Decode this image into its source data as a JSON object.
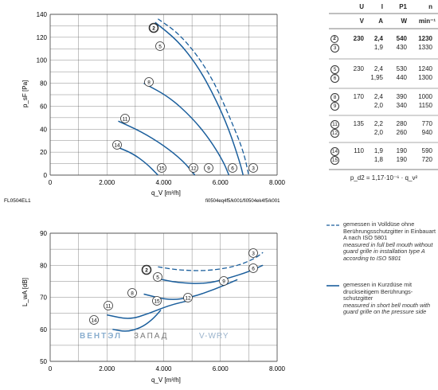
{
  "chart_data": [
    {
      "type": "line",
      "ylabel": "p_sF [Pa]",
      "xlabel": "q_V [m³/h]",
      "xlim": [
        0,
        8000
      ],
      "ylim": [
        0,
        140
      ],
      "x_ticks": [
        "0",
        "2.000",
        "4.000",
        "6.000",
        "8.000"
      ],
      "y_ticks": [
        "0",
        "20",
        "40",
        "60",
        "80",
        "100",
        "120",
        "140"
      ],
      "grid": true,
      "series": [
        {
          "name": "2",
          "style": "dashed",
          "points": [
            [
              3800,
              136
            ],
            [
              4500,
              124
            ],
            [
              5200,
              104
            ],
            [
              5800,
              80
            ],
            [
              6300,
              52
            ],
            [
              6800,
              22
            ],
            [
              7000,
              0
            ]
          ]
        },
        {
          "name": "5",
          "style": "solid",
          "points": [
            [
              3700,
              133
            ],
            [
              4500,
              117
            ],
            [
              5200,
              95
            ],
            [
              5800,
              68
            ],
            [
              6300,
              40
            ],
            [
              6700,
              10
            ],
            [
              6800,
              0
            ]
          ]
        },
        {
          "name": "8",
          "style": "solid",
          "points": [
            [
              3300,
              80
            ],
            [
              4200,
              68
            ],
            [
              5000,
              50
            ],
            [
              5600,
              32
            ],
            [
              6100,
              12
            ],
            [
              6300,
              0
            ]
          ]
        },
        {
          "name": "11",
          "style": "solid",
          "points": [
            [
              2400,
              47
            ],
            [
              3200,
              38
            ],
            [
              4000,
              26
            ],
            [
              4700,
              12
            ],
            [
              5100,
              0
            ]
          ]
        },
        {
          "name": "14",
          "style": "solid",
          "points": [
            [
              2300,
              25
            ],
            [
              2900,
              19
            ],
            [
              3400,
              10
            ],
            [
              3800,
              0
            ]
          ]
        }
      ],
      "curve_labels": [
        "2",
        "5",
        "8",
        "11",
        "14",
        "15",
        "12",
        "9",
        "6",
        "3"
      ],
      "footer_left": "FL0504EL1",
      "footer_right": "fi0504eq4f5/k001/fi0504ek4f5/k001"
    },
    {
      "type": "line",
      "ylabel": "L_wA [dB]",
      "xlabel": "q_V [m³/h]",
      "xlim": [
        0,
        8000
      ],
      "ylim": [
        50,
        90
      ],
      "x_ticks": [
        "0",
        "2.000",
        "4.000",
        "6.000",
        "8.000"
      ],
      "y_ticks": [
        "50",
        "60",
        "70",
        "80",
        "90"
      ],
      "grid": true,
      "series": [
        {
          "name": "2",
          "style": "dashed",
          "points": [
            [
              3800,
              79.5
            ],
            [
              4500,
              78.5
            ],
            [
              5500,
              78.2
            ],
            [
              6500,
              79.5
            ],
            [
              7200,
              82
            ],
            [
              7500,
              84
            ]
          ]
        },
        {
          "name": "5",
          "style": "solid",
          "points": [
            [
              3700,
              76
            ],
            [
              4500,
              74.5
            ],
            [
              5500,
              74.2
            ],
            [
              6300,
              76
            ],
            [
              7000,
              78
            ],
            [
              7500,
              80
            ]
          ]
        },
        {
          "name": "8",
          "style": "solid",
          "points": [
            [
              3300,
              71
            ],
            [
              4200,
              69
            ],
            [
              5000,
              70
            ],
            [
              5800,
              72.5
            ],
            [
              6600,
              75.5
            ]
          ]
        },
        {
          "name": "11",
          "style": "solid",
          "points": [
            [
              2000,
              64.5
            ],
            [
              2800,
              63
            ],
            [
              3500,
              65
            ],
            [
              4200,
              67.5
            ],
            [
              4900,
              69
            ]
          ]
        },
        {
          "name": "14",
          "style": "solid",
          "points": [
            [
              2200,
              60
            ],
            [
              2700,
              59.2
            ],
            [
              3200,
              60.5
            ],
            [
              3600,
              63
            ],
            [
              3900,
              66
            ]
          ]
        }
      ],
      "curve_labels": [
        "2",
        "5",
        "8",
        "11",
        "14",
        "15",
        "12",
        "9",
        "6",
        "3"
      ]
    }
  ],
  "table": {
    "headers": [
      "U",
      "I",
      "P1",
      "n"
    ],
    "units": [
      "V",
      "A",
      "W",
      "min⁻¹"
    ],
    "rows": [
      {
        "id": "2",
        "bold": true,
        "U": "230",
        "I": "2,4",
        "P": "540",
        "n": "1230"
      },
      {
        "id": "3",
        "bold": false,
        "U": "",
        "I": "1,9",
        "P": "430",
        "n": "1330"
      },
      {
        "id": "5",
        "bold": false,
        "U": "230",
        "I": "2,4",
        "P": "530",
        "n": "1240"
      },
      {
        "id": "6",
        "bold": false,
        "U": "",
        "I": "1,95",
        "P": "440",
        "n": "1300"
      },
      {
        "id": "8",
        "bold": false,
        "U": "170",
        "I": "2,4",
        "P": "390",
        "n": "1000"
      },
      {
        "id": "9",
        "bold": false,
        "U": "",
        "I": "2,0",
        "P": "340",
        "n": "1150"
      },
      {
        "id": "11",
        "bold": false,
        "U": "135",
        "I": "2,2",
        "P": "280",
        "n": "770"
      },
      {
        "id": "12",
        "bold": false,
        "U": "",
        "I": "2,0",
        "P": "260",
        "n": "940"
      },
      {
        "id": "14",
        "bold": false,
        "U": "110",
        "I": "1,9",
        "P": "190",
        "n": "590"
      },
      {
        "id": "15",
        "bold": false,
        "U": "",
        "I": "1,8",
        "P": "190",
        "n": "720"
      }
    ],
    "formula": "p_d2 = 1,17·10⁻⁶ · q_v²"
  },
  "legend": {
    "dashed": {
      "text_de": "gemessen in Volldüse ohne Berührungsschutzgitter in Einbauart A nach ISO 5801",
      "text_en": "measured in full bell mouth without guard grille in installation type A according to ISO 5801"
    },
    "solid": {
      "text_de": "gemessen in Kurzdüse mit druckseitigem Berührungs-schutzgitter",
      "text_en": "measured in short bell mouth with guard grille on the pressure side"
    }
  },
  "watermark": {
    "left": "ВЕНТЭЛ",
    "mid": "ЗАПАД",
    "right": "V-WRY"
  },
  "colors": {
    "solid": "#1a5e9c",
    "dashed": "#1a5e9c",
    "grid": "#555555",
    "circle": "#333333"
  }
}
